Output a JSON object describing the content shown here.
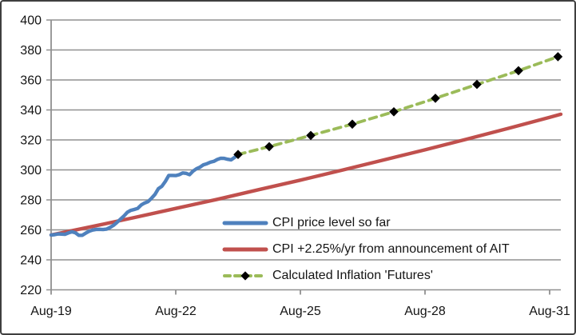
{
  "chart_data": {
    "type": "line",
    "title": "",
    "grid": true,
    "legend_position": "inside-bottom-center",
    "y_axis": {
      "ticks": [
        400,
        380,
        360,
        340,
        320,
        300,
        280,
        260,
        240,
        220
      ],
      "range": [
        220,
        400
      ]
    },
    "x_axis": {
      "unit": "years since Aug-19",
      "range_years": [
        0,
        12.27
      ],
      "ticks": [
        {
          "t": 0,
          "label": "Aug-19"
        },
        {
          "t": 3,
          "label": "Aug-22"
        },
        {
          "t": 6,
          "label": "Aug-25"
        },
        {
          "t": 9,
          "label": "Aug-28"
        },
        {
          "t": 12,
          "label": "Aug-31"
        }
      ]
    },
    "series": [
      {
        "name": "CPI price level so far",
        "type": "line",
        "color": "#4F81BD",
        "x_start_years": 0,
        "x_step_years": 0.0833333,
        "values": [
          256.6,
          256.8,
          257.3,
          257.2,
          257.0,
          258.0,
          258.7,
          258.1,
          256.4,
          256.4,
          257.8,
          259.1,
          259.9,
          260.3,
          260.4,
          260.2,
          260.5,
          261.6,
          263.0,
          264.9,
          267.1,
          269.2,
          271.7,
          273.0,
          273.6,
          274.3,
          276.6,
          277.9,
          278.8,
          281.1,
          283.7,
          287.5,
          289.1,
          292.3,
          296.3,
          296.3,
          296.2,
          296.8,
          298.0,
          297.7,
          296.8,
          299.2,
          300.8,
          301.8,
          303.4,
          304.1,
          305.1,
          305.7,
          307.0,
          307.8,
          307.7,
          307.1,
          306.7,
          308.4,
          310.3
        ]
      },
      {
        "name": "CPI +2.25%/yr from announcement of AIT",
        "type": "line",
        "color": "#C0504D",
        "points": [
          {
            "t": 0,
            "v": 256.6
          },
          {
            "t": 1,
            "v": 262.3
          },
          {
            "t": 2,
            "v": 268.2
          },
          {
            "t": 3,
            "v": 274.3
          },
          {
            "t": 4,
            "v": 280.4
          },
          {
            "t": 5,
            "v": 286.8
          },
          {
            "t": 6,
            "v": 293.2
          },
          {
            "t": 7,
            "v": 299.8
          },
          {
            "t": 8,
            "v": 306.6
          },
          {
            "t": 9,
            "v": 313.4
          },
          {
            "t": 10,
            "v": 320.5
          },
          {
            "t": 11,
            "v": 327.7
          },
          {
            "t": 12,
            "v": 335.1
          },
          {
            "t": 12.27,
            "v": 337.1
          }
        ]
      },
      {
        "name": "Calculated Inflation 'Futures'",
        "type": "dashed-line-diamond-markers",
        "color": "#9BBB59",
        "marker_color": "#000000",
        "points": [
          {
            "t": 4.5,
            "v": 310.3
          },
          {
            "t": 5.25,
            "v": 315.5
          },
          {
            "t": 6.25,
            "v": 323.0
          },
          {
            "t": 7.25,
            "v": 330.5
          },
          {
            "t": 8.25,
            "v": 338.8
          },
          {
            "t": 9.25,
            "v": 347.8
          },
          {
            "t": 10.25,
            "v": 357.0
          },
          {
            "t": 11.25,
            "v": 366.2
          },
          {
            "t": 12.2,
            "v": 375.5
          }
        ]
      }
    ],
    "style": {
      "grid_color": "#909090",
      "axis_color": "#909090",
      "text_color": "#141414",
      "background": "#ffffff"
    }
  }
}
